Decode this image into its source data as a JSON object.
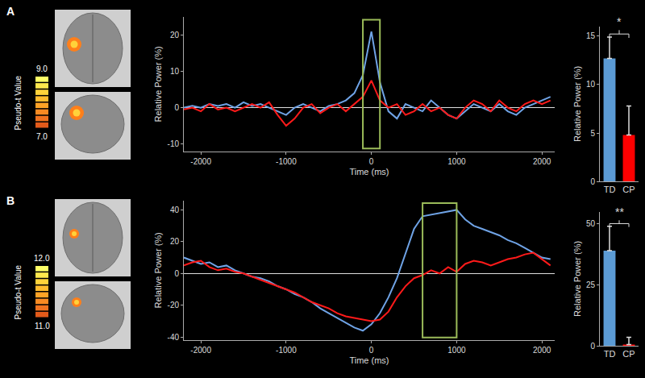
{
  "chart_data": [
    {
      "type": "line",
      "x_label": "Time (ms)",
      "y_label": "Relative Power (%)",
      "x": [
        -2200,
        -2100,
        -2000,
        -1900,
        -1800,
        -1700,
        -1600,
        -1500,
        -1400,
        -1300,
        -1200,
        -1100,
        -1000,
        -900,
        -800,
        -700,
        -600,
        -500,
        -400,
        -300,
        -200,
        -100,
        0,
        100,
        200,
        300,
        400,
        500,
        600,
        700,
        800,
        900,
        1000,
        1100,
        1200,
        1300,
        1400,
        1500,
        1600,
        1700,
        1800,
        1900,
        2000,
        2100
      ],
      "series": [
        {
          "color": "#6fa3e6",
          "values": [
            0,
            0.5,
            0,
            1,
            0.5,
            1,
            0,
            1.5,
            0.5,
            1,
            0,
            -1,
            -2,
            0,
            1,
            0,
            -1,
            0.5,
            1,
            2,
            4,
            9,
            21,
            7,
            -1,
            -3,
            1,
            0,
            -1,
            2,
            0,
            -2,
            -3,
            -1,
            1,
            0,
            -1,
            1,
            -1,
            -2,
            0,
            1,
            2,
            3
          ]
        },
        {
          "color": "#ff1a1a",
          "values": [
            -0.5,
            0,
            -1,
            1,
            -0.5,
            0,
            -1,
            0,
            1,
            0,
            1.5,
            -2,
            -5,
            -3,
            0,
            1,
            -1.5,
            0,
            1,
            -1,
            1,
            3,
            7.5,
            2,
            0,
            1,
            -2,
            -1,
            1,
            -1,
            0,
            -2,
            -3,
            0,
            2,
            1,
            -1,
            2,
            0,
            -1,
            1,
            2,
            1,
            2
          ]
        }
      ],
      "xlim": [
        -2200,
        2150
      ],
      "xticks": [
        -2000,
        -1000,
        0,
        1000,
        2000
      ],
      "ylim": [
        -12,
        25
      ],
      "yticks": [
        -10,
        0,
        10,
        20
      ],
      "window": {
        "x": [
          -100,
          100
        ],
        "color": "#9bbb59"
      },
      "grid": false
    },
    {
      "type": "bar",
      "y_label": "Relative Power (%)",
      "categories": [
        "TD",
        "CP"
      ],
      "values": [
        12.7,
        4.8
      ],
      "errors": [
        2.2,
        3.0
      ],
      "colors": [
        "#5b9bd5",
        "#ff0000"
      ],
      "ylim": [
        0,
        16
      ],
      "yticks": [
        0,
        5,
        10,
        15
      ],
      "significance": "*",
      "grid": false
    },
    {
      "type": "line",
      "x_label": "Time (ms)",
      "y_label": "Relative Power (%)",
      "x": [
        -2200,
        -2100,
        -2000,
        -1900,
        -1800,
        -1700,
        -1600,
        -1500,
        -1400,
        -1300,
        -1200,
        -1100,
        -1000,
        -900,
        -800,
        -700,
        -600,
        -500,
        -400,
        -300,
        -200,
        -100,
        0,
        100,
        200,
        300,
        400,
        500,
        600,
        700,
        800,
        900,
        1000,
        1100,
        1200,
        1300,
        1400,
        1500,
        1600,
        1700,
        1800,
        1900,
        2000,
        2100
      ],
      "series": [
        {
          "color": "#6fa3e6",
          "values": [
            10,
            8,
            6,
            7,
            4,
            5,
            2,
            0,
            -2,
            -3,
            -5,
            -8,
            -10,
            -13,
            -15,
            -18,
            -22,
            -25,
            -28,
            -31,
            -34,
            -36,
            -32,
            -25,
            -15,
            -3,
            12,
            28,
            36,
            37,
            38,
            39,
            40,
            34,
            30,
            28,
            26,
            24,
            21,
            19,
            16,
            13,
            10,
            9
          ]
        },
        {
          "color": "#ff1a1a",
          "values": [
            5,
            7,
            8,
            4,
            2,
            3,
            1,
            0,
            -2,
            -4,
            -6,
            -8,
            -10,
            -12,
            -15,
            -18,
            -20,
            -22,
            -25,
            -27,
            -28,
            -29,
            -30,
            -29,
            -24,
            -15,
            -8,
            -3,
            -1,
            2,
            0,
            4,
            1,
            6,
            8,
            7,
            5,
            7,
            9,
            10,
            12,
            13,
            9,
            5
          ]
        }
      ],
      "xlim": [
        -2200,
        2150
      ],
      "xticks": [
        -2000,
        -1000,
        0,
        1000,
        2000
      ],
      "ylim": [
        -42,
        46
      ],
      "yticks": [
        -40,
        -20,
        0,
        20,
        40
      ],
      "window": {
        "x": [
          600,
          1000
        ],
        "color": "#9bbb59"
      },
      "grid": false
    },
    {
      "type": "bar",
      "y_label": "Relative Power (%)",
      "categories": [
        "TD",
        "CP"
      ],
      "values": [
        39,
        0.5
      ],
      "errors": [
        10,
        3
      ],
      "colors": [
        "#5b9bd5",
        "#ff0000"
      ],
      "ylim": [
        0,
        55
      ],
      "yticks": [
        0,
        25,
        50
      ],
      "significance": "**",
      "grid": false
    }
  ],
  "panels": [
    {
      "label": "A",
      "colorbar": {
        "title": "Pseudo-t Value",
        "range": [
          7,
          9
        ],
        "ticks": [
          {
            "value": 9,
            "label": "9.0"
          },
          {
            "value": 7,
            "label": "7.0"
          }
        ]
      }
    },
    {
      "label": "B",
      "colorbar": {
        "title": "Pseudo-t Value",
        "range": [
          11,
          12
        ],
        "ticks": [
          {
            "value": 12,
            "label": "12.0"
          },
          {
            "value": 11,
            "label": "11.0"
          }
        ]
      }
    }
  ]
}
